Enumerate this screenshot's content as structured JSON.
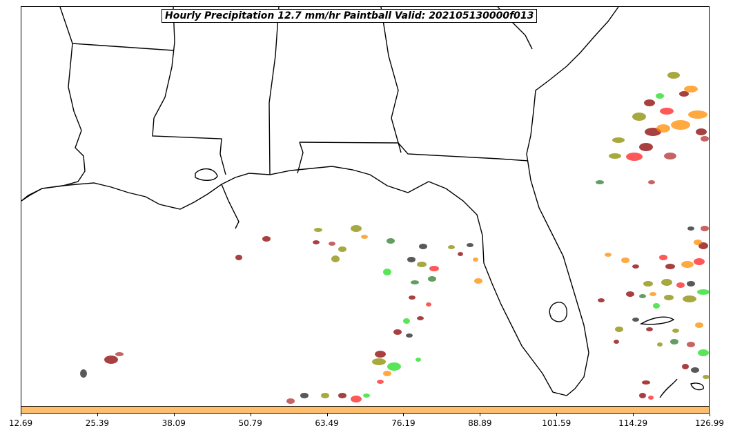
{
  "title": "Hourly Precipitation 12.7 mm/hr Paintball Valid: 202105130000f013",
  "colorbar": {
    "color": "#fdbf6f",
    "ticks": [
      "12.69",
      "25.39",
      "38.09",
      "50.79",
      "63.49",
      "76.19",
      "88.89",
      "101.59",
      "114.29",
      "126.99"
    ]
  },
  "paintball_colors": [
    "#8b0000",
    "#ff2020",
    "#ff8c00",
    "#8b8b00",
    "#20dd20",
    "#2e7d2e",
    "#222222",
    "#b03030"
  ]
}
